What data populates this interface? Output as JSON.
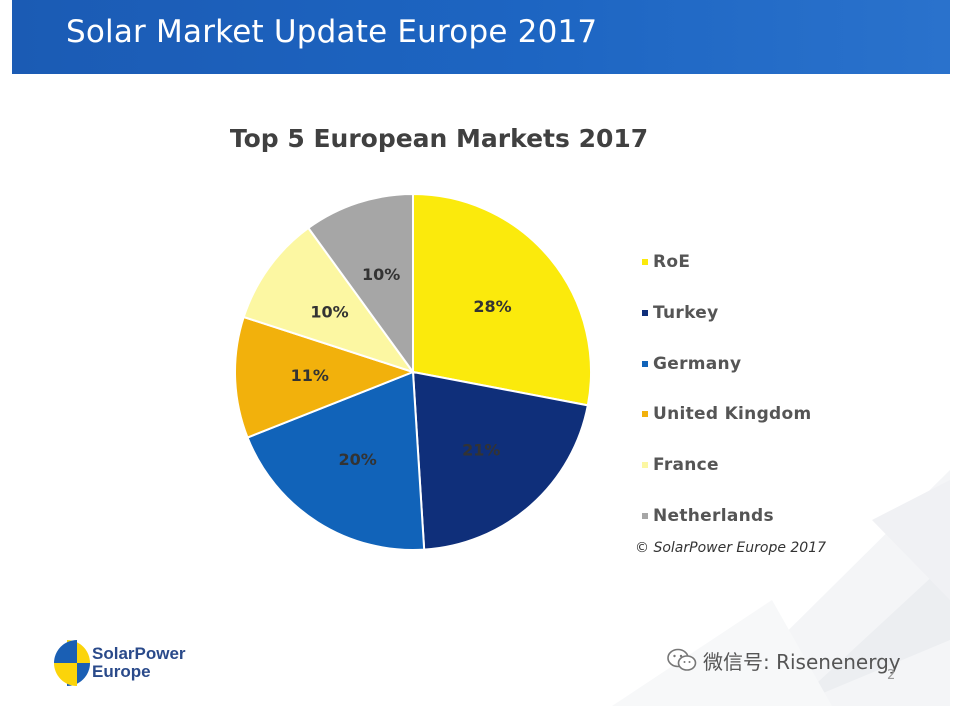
{
  "header": {
    "title": "Solar Market Update Europe 2017"
  },
  "chart_data": {
    "type": "pie",
    "title": "Top 5 European Markets 2017",
    "slices": [
      {
        "label": "RoE",
        "value": 28,
        "label_text": "28%",
        "color": "#fbea0c"
      },
      {
        "label": "Turkey",
        "value": 21,
        "label_text": "21%",
        "color": "#0f2f7a"
      },
      {
        "label": "Germany",
        "value": 20,
        "label_text": "20%",
        "color": "#1163b9"
      },
      {
        "label": "United Kingdom",
        "value": 11,
        "label_text": "11%",
        "color": "#f2b10c"
      },
      {
        "label": "France",
        "value": 10,
        "label_text": "10%",
        "color": "#fcf7a2"
      },
      {
        "label": "Netherlands",
        "value": 10,
        "label_text": "10%",
        "color": "#a6a6a6"
      }
    ],
    "legend_position": "right"
  },
  "footer": {
    "copyright": "© SolarPower Europe 2017",
    "logo_line1": "SolarPower",
    "logo_line2": "Europe",
    "watermark": "微信号: Risenenergy",
    "page_number": "2"
  }
}
